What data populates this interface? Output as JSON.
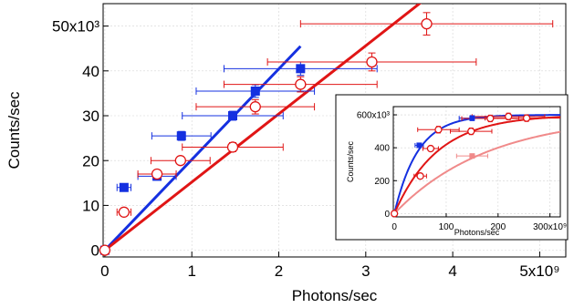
{
  "chart_data": [
    {
      "type": "scatter",
      "title": "",
      "xlabel": "Photons/sec",
      "ylabel": "Counts/sec",
      "xlim": [
        -0.02,
        5.3
      ],
      "ylim": [
        -1.5,
        55
      ],
      "xticks": [
        0,
        1,
        2,
        3,
        4,
        5
      ],
      "xtick_labels": [
        "0",
        "1",
        "2",
        "3",
        "4",
        "5x10⁹"
      ],
      "yticks": [
        0,
        10,
        20,
        30,
        40,
        50
      ],
      "ytick_labels": [
        "0",
        "10",
        "20",
        "30",
        "40",
        "50x10³"
      ],
      "grid": true,
      "colors": {
        "blue": "#1530e0",
        "red": "#e01515"
      },
      "series": [
        {
          "marker": "filled-square",
          "color": "#1530e0",
          "points": [
            {
              "x": 0.0,
              "y": 0.0,
              "xerr": 0.04,
              "yerr": 0.0
            },
            {
              "x": 0.22,
              "y": 14.0,
              "xerr": 0.08,
              "yerr": 0.0
            },
            {
              "x": 0.6,
              "y": 16.5,
              "xerr": 0.22,
              "yerr": 0.5
            },
            {
              "x": 0.88,
              "y": 25.5,
              "xerr": 0.34,
              "yerr": 1.0
            },
            {
              "x": 1.47,
              "y": 30.0,
              "xerr": 0.58,
              "yerr": 1.0
            },
            {
              "x": 1.73,
              "y": 35.5,
              "xerr": 0.68,
              "yerr": 1.4
            },
            {
              "x": 2.25,
              "y": 40.5,
              "xerr": 0.88,
              "yerr": 1.5
            }
          ]
        },
        {
          "marker": "open-circle",
          "color": "#e01515",
          "points": [
            {
              "x": 0.0,
              "y": 0.0,
              "xerr": 0.04,
              "yerr": 0.0
            },
            {
              "x": 0.22,
              "y": 8.5,
              "xerr": 0.08,
              "yerr": 0.0
            },
            {
              "x": 0.6,
              "y": 17.0,
              "xerr": 0.22,
              "yerr": 0.8
            },
            {
              "x": 0.87,
              "y": 20.0,
              "xerr": 0.34,
              "yerr": 0.8
            },
            {
              "x": 1.47,
              "y": 23.0,
              "xerr": 0.58,
              "yerr": 1.0
            },
            {
              "x": 1.73,
              "y": 32.0,
              "xerr": 0.68,
              "yerr": 1.6
            },
            {
              "x": 2.25,
              "y": 37.0,
              "xerr": 0.88,
              "yerr": 1.7
            },
            {
              "x": 3.07,
              "y": 42.0,
              "xerr": 1.2,
              "yerr": 2.0
            },
            {
              "x": 3.07,
              "y": 0,
              "xerr": 0,
              "yerr": 0,
              "hidden": true
            },
            {
              "x": 3.7,
              "y": 50.5,
              "xerr": 1.45,
              "yerr": 2.5
            }
          ]
        }
      ],
      "fit_lines": [
        {
          "color": "#1530e0",
          "x": [
            0,
            2.25
          ],
          "y": [
            0,
            45.5
          ]
        },
        {
          "color": "#e01515",
          "x": [
            0,
            3.65
          ],
          "y": [
            0,
            55.5
          ]
        }
      ]
    },
    {
      "type": "scatter",
      "title": "",
      "xlabel": "Photons/sec",
      "ylabel": "Counts/sec",
      "xlim": [
        -2,
        320
      ],
      "ylim": [
        -20,
        650
      ],
      "xticks": [
        0,
        100,
        200,
        300
      ],
      "xtick_labels": [
        "0",
        "100",
        "200",
        "300x10⁹"
      ],
      "yticks": [
        0,
        200,
        400,
        600
      ],
      "ytick_labels": [
        "0",
        "200",
        "400",
        "600x10³"
      ],
      "grid": true,
      "legend": "none",
      "colors": {
        "blue": "#1530e0",
        "red": "#e01515",
        "pink": "#f08a8a"
      },
      "series": [
        {
          "marker": "filled-square",
          "color": "#1530e0",
          "points": [
            {
              "x": 0,
              "y": 0,
              "xerr": 0,
              "yerr": 0
            },
            {
              "x": 48,
              "y": 415,
              "xerr": 8,
              "yerr": 12
            },
            {
              "x": 150,
              "y": 580,
              "xerr": 25,
              "yerr": 15
            }
          ]
        },
        {
          "marker": "open-circle",
          "color": "#e01515",
          "points": [
            {
              "x": 0,
              "y": 0,
              "xerr": 0,
              "yerr": 0
            },
            {
              "x": 50,
              "y": 228,
              "xerr": 12,
              "yerr": 10
            },
            {
              "x": 70,
              "y": 395,
              "xerr": 15,
              "yerr": 15
            },
            {
              "x": 85,
              "y": 510,
              "xerr": 40,
              "yerr": 20
            },
            {
              "x": 148,
              "y": 500,
              "xerr": 40,
              "yerr": 20
            },
            {
              "x": 185,
              "y": 578,
              "xerr": 55,
              "yerr": 20
            },
            {
              "x": 220,
              "y": 590,
              "xerr": 70,
              "yerr": 20
            },
            {
              "x": 255,
              "y": 580,
              "xerr": 80,
              "yerr": 20
            }
          ]
        },
        {
          "marker": "filled-square",
          "color": "#f08a8a",
          "points": [
            {
              "x": 150,
              "y": 350,
              "xerr": 30,
              "yerr": 12
            }
          ]
        }
      ],
      "saturation_curves": [
        {
          "color": "#1530e0",
          "ymax": 600,
          "k": 0.022
        },
        {
          "color": "#e01515",
          "ymax": 600,
          "k": 0.012
        },
        {
          "color": "#f08a8a",
          "ymax": 600,
          "k": 0.0055
        }
      ]
    }
  ]
}
